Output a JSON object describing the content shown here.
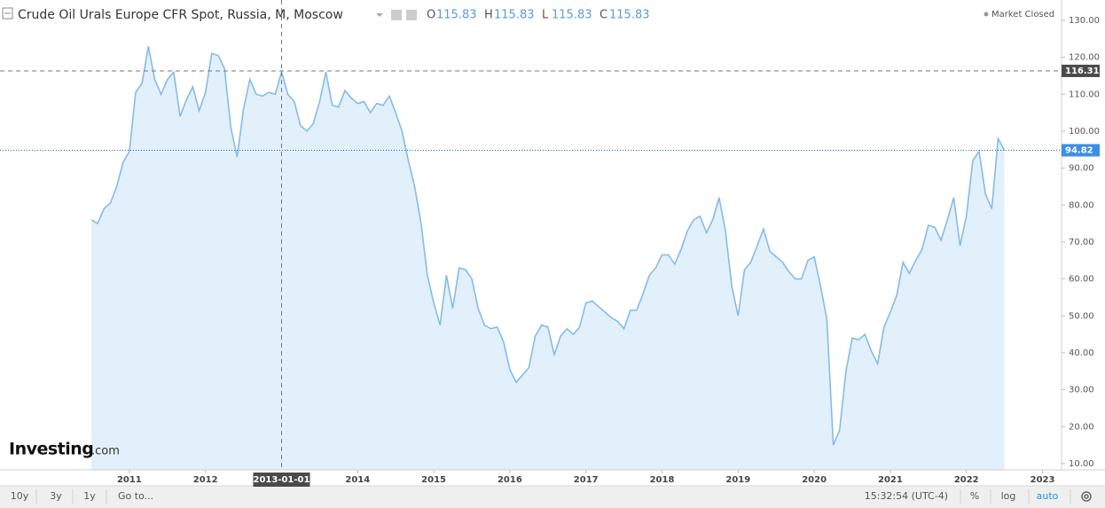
{
  "header": {
    "title": "Crude Oil Urals Europe CFR Spot, Russia, M, Moscow",
    "ohlc": [
      {
        "label": "O",
        "value": 115.83
      },
      {
        "label": "H",
        "value": 115.83
      },
      {
        "label": "L",
        "value": 115.83
      },
      {
        "label": "C",
        "value": 115.83
      }
    ],
    "status": "Market Closed"
  },
  "logo": {
    "name": "Investing",
    "suffix": ".com"
  },
  "toolbar": {
    "ranges": [
      "10y",
      "3y",
      "1y"
    ],
    "goto": "Go to...",
    "time": "15:32:54 (UTC-4)",
    "options": [
      "%",
      "log",
      "auto"
    ]
  },
  "chart_data": {
    "type": "area",
    "color": "#86bbe8",
    "fill": "#e1f0fa",
    "grid": false,
    "x": [
      "2010-07-01",
      "2010-08-01",
      "2010-09-01",
      "2010-10-01",
      "2010-11-01",
      "2010-12-01",
      "2011-01-01",
      "2011-02-01",
      "2011-03-01",
      "2011-04-01",
      "2011-05-01",
      "2011-06-01",
      "2011-07-01",
      "2011-08-01",
      "2011-09-01",
      "2011-10-01",
      "2011-11-01",
      "2011-12-01",
      "2012-01-01",
      "2012-02-01",
      "2012-03-01",
      "2012-04-01",
      "2012-05-01",
      "2012-06-01",
      "2012-07-01",
      "2012-08-01",
      "2012-09-01",
      "2012-10-01",
      "2012-11-01",
      "2012-12-01",
      "2013-01-01",
      "2013-02-01",
      "2013-03-01",
      "2013-04-01",
      "2013-05-01",
      "2013-06-01",
      "2013-07-01",
      "2013-08-01",
      "2013-09-01",
      "2013-10-01",
      "2013-11-01",
      "2013-12-01",
      "2014-01-01",
      "2014-02-01",
      "2014-03-01",
      "2014-04-01",
      "2014-05-01",
      "2014-06-01",
      "2014-07-01",
      "2014-08-01",
      "2014-09-01",
      "2014-10-01",
      "2014-11-01",
      "2014-12-01",
      "2015-01-01",
      "2015-02-01",
      "2015-03-01",
      "2015-04-01",
      "2015-05-01",
      "2015-06-01",
      "2015-07-01",
      "2015-08-01",
      "2015-09-01",
      "2015-10-01",
      "2015-11-01",
      "2015-12-01",
      "2016-01-01",
      "2016-02-01",
      "2016-03-01",
      "2016-04-01",
      "2016-05-01",
      "2016-06-01",
      "2016-07-01",
      "2016-08-01",
      "2016-09-01",
      "2016-10-01",
      "2016-11-01",
      "2016-12-01",
      "2017-01-01",
      "2017-02-01",
      "2017-03-01",
      "2017-04-01",
      "2017-05-01",
      "2017-06-01",
      "2017-07-01",
      "2017-08-01",
      "2017-09-01",
      "2017-10-01",
      "2017-11-01",
      "2017-12-01",
      "2018-01-01",
      "2018-02-01",
      "2018-03-01",
      "2018-04-01",
      "2018-05-01",
      "2018-06-01",
      "2018-07-01",
      "2018-08-01",
      "2018-09-01",
      "2018-10-01",
      "2018-11-01",
      "2018-12-01",
      "2019-01-01",
      "2019-02-01",
      "2019-03-01",
      "2019-04-01",
      "2019-05-01",
      "2019-06-01",
      "2019-07-01",
      "2019-08-01",
      "2019-09-01",
      "2019-10-01",
      "2019-11-01",
      "2019-12-01",
      "2020-01-01",
      "2020-02-01",
      "2020-03-01",
      "2020-04-01",
      "2020-05-01",
      "2020-06-01",
      "2020-07-01",
      "2020-08-01",
      "2020-09-01",
      "2020-10-01",
      "2020-11-01",
      "2020-12-01",
      "2021-01-01",
      "2021-02-01",
      "2021-03-01",
      "2021-04-01",
      "2021-05-01",
      "2021-06-01",
      "2021-07-01",
      "2021-08-01",
      "2021-09-01",
      "2021-10-01",
      "2021-11-01",
      "2021-12-01",
      "2022-01-01",
      "2022-02-01",
      "2022-03-01",
      "2022-04-01",
      "2022-05-01",
      "2022-06-01",
      "2022-07-01"
    ],
    "values": [
      76,
      75,
      79,
      80.5,
      85,
      91.5,
      94.5,
      110.5,
      113,
      123,
      114,
      110,
      114,
      116,
      104,
      108.5,
      112,
      105.5,
      110.5,
      121,
      120.5,
      117,
      101,
      93,
      106,
      114,
      110,
      109.5,
      110.5,
      110,
      116,
      110,
      108,
      101.5,
      100,
      102,
      108,
      116,
      107,
      106.5,
      111,
      109,
      107.5,
      108,
      105,
      107.5,
      107,
      109.5,
      105,
      100,
      92,
      85,
      75,
      61,
      53.5,
      47.5,
      61,
      52,
      63,
      62.5,
      60,
      52,
      47.5,
      46.5,
      47,
      43,
      35.5,
      32,
      34,
      36,
      44.5,
      47.5,
      47,
      39.5,
      44.5,
      46.5,
      45,
      47,
      53.5,
      54,
      52.5,
      51,
      49.5,
      48.5,
      46.5,
      51.5,
      51.5,
      56,
      61,
      63,
      66.5,
      66.5,
      64,
      68,
      73,
      76,
      77,
      72.5,
      76,
      82,
      73,
      58,
      50,
      62.5,
      64.5,
      69,
      73.5,
      67.5,
      66,
      64.5,
      62,
      60,
      60,
      65,
      66,
      58,
      49,
      15,
      19,
      35,
      44,
      43.5,
      45,
      40.5,
      37,
      47,
      51,
      55.5,
      64.5,
      61.5,
      65,
      68,
      74.5,
      74,
      70.5,
      76,
      82,
      69,
      77,
      92,
      94.5,
      83,
      79,
      98,
      94.82
    ],
    "xlim": [
      2009.3,
      2023.25
    ],
    "xticks": [
      2011,
      2012,
      2014,
      2015,
      2016,
      2017,
      2018,
      2019,
      2020,
      2021,
      2022,
      2023
    ],
    "ylim": [
      8.3,
      135.5
    ],
    "yticks": [
      {
        "value": 10,
        "label": "10.00"
      },
      {
        "value": 20,
        "label": "20.00"
      },
      {
        "value": 30,
        "label": "30.00"
      },
      {
        "value": 40,
        "label": "40.00"
      },
      {
        "value": 50,
        "label": "50.00"
      },
      {
        "value": 60,
        "label": "60.00"
      },
      {
        "value": 70,
        "label": "70.00"
      },
      {
        "value": 80,
        "label": "80.00"
      },
      {
        "value": 90,
        "label": "90.00"
      },
      {
        "value": 100,
        "label": "100.00"
      },
      {
        "value": 110,
        "label": "110.00"
      },
      {
        "value": 120,
        "label": "120.00"
      },
      {
        "value": 130,
        "label": "130.00"
      }
    ],
    "crosshair": {
      "x": "2013-01-01",
      "y": 116.31
    }
  }
}
